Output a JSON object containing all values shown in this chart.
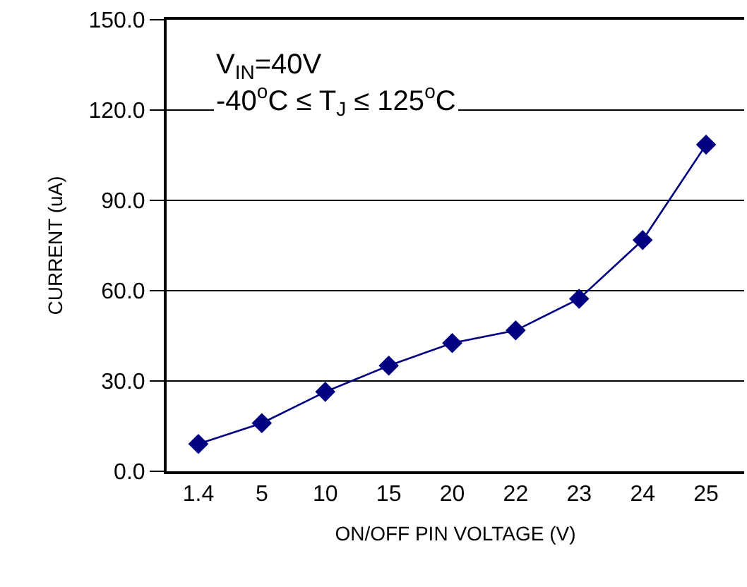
{
  "chart_data": {
    "type": "line",
    "xlabel": "ON/OFF PIN VOLTAGE (V)",
    "ylabel": "CURRENT (uA)",
    "categories": [
      "1.4",
      "5",
      "10",
      "15",
      "20",
      "22",
      "23",
      "24",
      "25"
    ],
    "series": [
      {
        "color": "#000080",
        "values": [
          9.1,
          16.0,
          26.4,
          35.1,
          42.6,
          46.8,
          57.3,
          76.8,
          108.5
        ]
      }
    ],
    "ylim": [
      0,
      150
    ],
    "yticks": [
      {
        "value": 0,
        "label": "0.0"
      },
      {
        "value": 30,
        "label": "30.0"
      },
      {
        "value": 60,
        "label": "60.0"
      },
      {
        "value": 90,
        "label": "90.0"
      },
      {
        "value": 120,
        "label": "120.0"
      },
      {
        "value": 150,
        "label": "150.0"
      }
    ],
    "grid": "y",
    "marker": "diamond",
    "line_style": "solid",
    "legend": false,
    "annotations": [
      "V$_{IN}$=40V\n-40$^{o}$C ≤ T$_{J}$ ≤ 125$^{o}$C"
    ]
  }
}
